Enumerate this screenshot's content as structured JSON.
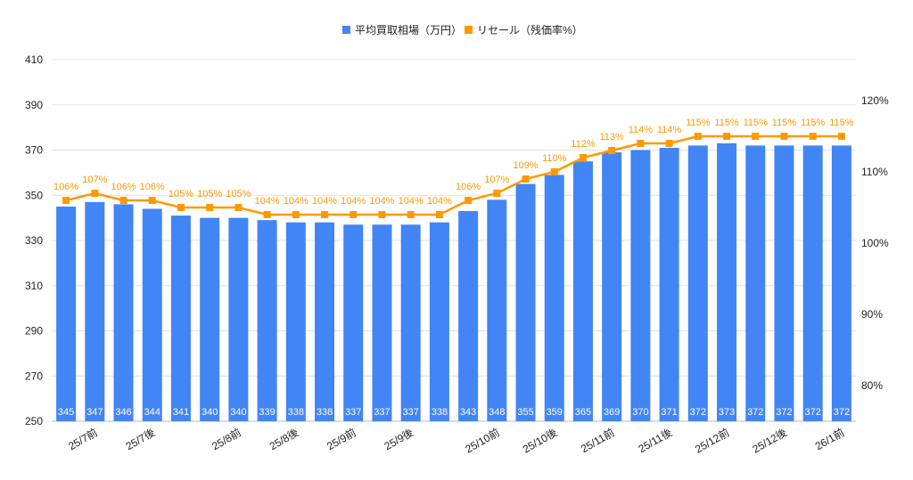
{
  "chart_data": {
    "type": "bar+line",
    "legend_position": "top",
    "grid": true,
    "categories": [
      "25/7前",
      "",
      "25/7後",
      "",
      "",
      "25/8前",
      "",
      "25/8後",
      "",
      "25/9前",
      "",
      "25/9後",
      "",
      "",
      "25/10前",
      "",
      "25/10後",
      "",
      "25/11前",
      "",
      "25/11後",
      "",
      "25/12前",
      "",
      "25/12後",
      "",
      "26/1前",
      ""
    ],
    "x_tick_labels": [
      {
        "index": 1,
        "label": "25/7前"
      },
      {
        "index": 3,
        "label": "25/7後"
      },
      {
        "index": 6,
        "label": "25/8前"
      },
      {
        "index": 8,
        "label": "25/8後"
      },
      {
        "index": 10,
        "label": "25/9前"
      },
      {
        "index": 12,
        "label": "25/9後"
      },
      {
        "index": 15,
        "label": "25/10前"
      },
      {
        "index": 17,
        "label": "25/10後"
      },
      {
        "index": 19,
        "label": "25/11前"
      },
      {
        "index": 21,
        "label": "25/11後"
      },
      {
        "index": 23,
        "label": "25/12前"
      },
      {
        "index": 25,
        "label": "25/12後"
      },
      {
        "index": 27,
        "label": "26/1前"
      }
    ],
    "series": [
      {
        "name": "平均買取相場（万円）",
        "type": "bar",
        "axis": "left",
        "color": "#4285f4",
        "values": [
          345,
          347,
          346,
          344,
          341,
          340,
          340,
          339,
          338,
          338,
          337,
          337,
          337,
          338,
          343,
          348,
          355,
          359,
          365,
          369,
          370,
          371,
          372,
          373,
          372,
          372,
          372,
          372
        ]
      },
      {
        "name": "リセール（残価率%）",
        "type": "line",
        "axis": "right",
        "color": "#ff9900",
        "values": [
          106,
          107,
          106,
          106,
          105,
          105,
          105,
          104,
          104,
          104,
          104,
          104,
          104,
          104,
          106,
          107,
          109,
          110,
          112,
          113,
          114,
          114,
          115,
          115,
          115,
          115,
          115,
          115
        ]
      }
    ],
    "left_axis": {
      "ylim": [
        250,
        410
      ],
      "ticks": [
        "250",
        "270",
        "290",
        "310",
        "330",
        "350",
        "370",
        "390",
        "410"
      ]
    },
    "right_axis": {
      "ylim": [
        75,
        125.75
      ],
      "ticks": [
        "80%",
        "90%",
        "100%",
        "110%",
        "120%"
      ]
    }
  }
}
